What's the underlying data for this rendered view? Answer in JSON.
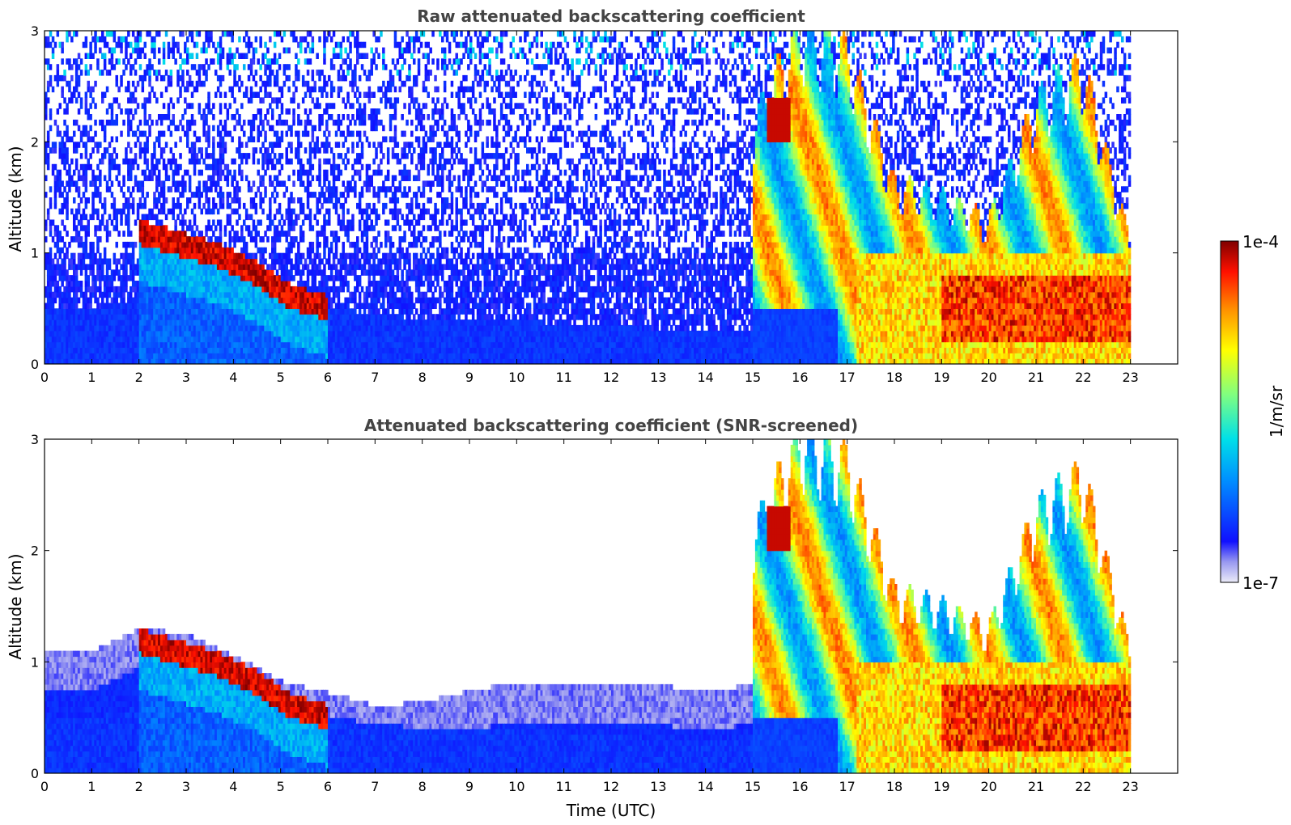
{
  "chart_data": [
    {
      "type": "heatmap",
      "title": "Raw attenuated backscattering coefficient",
      "xlabel": "",
      "ylabel": "Altitude (km)",
      "xlim": [
        0,
        24
      ],
      "ylim": [
        0,
        3
      ],
      "x_ticks": [
        "0",
        "1",
        "2",
        "3",
        "4",
        "5",
        "6",
        "7",
        "8",
        "9",
        "10",
        "11",
        "12",
        "13",
        "14",
        "15",
        "16",
        "17",
        "18",
        "19",
        "20",
        "21",
        "22",
        "23"
      ],
      "y_ticks": [
        "0",
        "1",
        "2",
        "3"
      ],
      "data_end_time": 23,
      "layers": [
        {
          "feature": "aerosol_layer",
          "start_time": 2.0,
          "end_time": 6.0,
          "top_km": [
            1.3,
            1.2,
            1.1,
            0.95,
            0.72,
            0.62
          ],
          "level": "high"
        },
        {
          "feature": "cloud_patch",
          "start_time": 15.3,
          "end_time": 15.8,
          "altitude_km": [
            2.0,
            2.4
          ],
          "level": "high"
        },
        {
          "feature": "convective_plumes",
          "start_time": 15.0,
          "end_time": 23.0,
          "top_km": [
            2.0,
            2.8,
            2.6,
            1.5,
            1.4,
            1.2,
            2.2,
            2.5,
            1.0
          ],
          "level": "medium-high"
        },
        {
          "feature": "boundary_layer",
          "start_time": 0,
          "end_time": 17.2,
          "top_km": [
            0.5,
            0.5,
            0.6,
            0.6,
            0.6,
            0.55,
            0.5,
            0.45,
            0.4,
            0.4,
            0.4,
            0.35,
            0.35,
            0.3,
            0.3,
            0.3,
            0.35,
            0.4
          ],
          "level": "low"
        }
      ],
      "noise": "background noise visible above boundary layer"
    },
    {
      "type": "heatmap",
      "title": "Attenuated backscattering coefficient (SNR-screened)",
      "xlabel": "Time (UTC)",
      "ylabel": "Altitude (km)",
      "xlim": [
        0,
        24
      ],
      "ylim": [
        0,
        3
      ],
      "x_ticks": [
        "0",
        "1",
        "2",
        "3",
        "4",
        "5",
        "6",
        "7",
        "8",
        "9",
        "10",
        "11",
        "12",
        "13",
        "14",
        "15",
        "16",
        "17",
        "18",
        "19",
        "20",
        "21",
        "22",
        "23"
      ],
      "y_ticks": [
        "0",
        "1",
        "2",
        "3"
      ],
      "data_end_time": 23,
      "screened_top_km": [
        1.1,
        1.1,
        1.3,
        1.25,
        1.05,
        0.82,
        0.72,
        0.6,
        0.65,
        0.75,
        0.82,
        0.8,
        0.8,
        0.78,
        0.75,
        0.8,
        0.8,
        0.8
      ],
      "noise": "none (screened)"
    }
  ],
  "colorbar": {
    "label": "1/m/sr",
    "max_label": "1e-4",
    "min_label": "1e-7",
    "scale": "log",
    "range": [
      1e-07,
      0.0001
    ],
    "colormap": "jet"
  }
}
